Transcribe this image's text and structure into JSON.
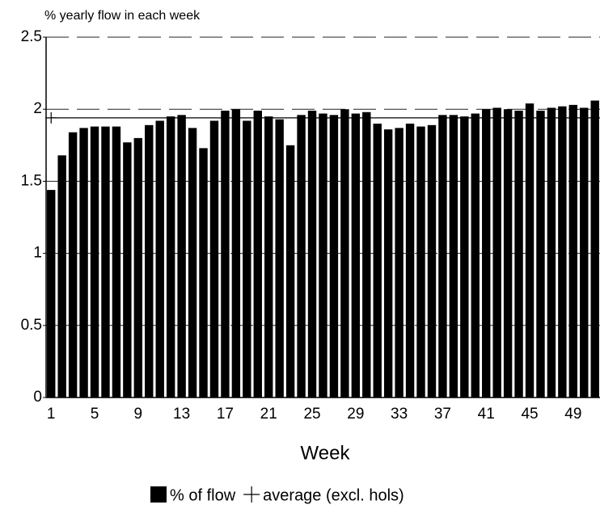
{
  "chart_data": {
    "type": "bar",
    "y_label": "% yearly flow in each week",
    "x_label": "Week",
    "categories": [
      "1",
      null,
      null,
      null,
      "5",
      null,
      null,
      null,
      "9",
      null,
      null,
      null,
      "13",
      null,
      null,
      null,
      "17",
      null,
      null,
      null,
      "21",
      null,
      null,
      null,
      "25",
      null,
      null,
      null,
      "29",
      null,
      null,
      null,
      "33",
      null,
      null,
      null,
      "37",
      null,
      null,
      null,
      "41",
      null,
      null,
      null,
      "45",
      null,
      null,
      null,
      "49",
      null,
      null,
      null
    ],
    "series": [
      {
        "name": "% of flow",
        "type": "bar",
        "color": "#000000",
        "values": [
          1.44,
          1.68,
          1.84,
          1.87,
          1.88,
          1.88,
          1.88,
          1.77,
          1.8,
          1.89,
          1.92,
          1.95,
          1.96,
          1.87,
          1.73,
          1.92,
          1.99,
          2.0,
          1.92,
          1.99,
          1.95,
          1.93,
          1.75,
          1.96,
          1.99,
          1.97,
          1.96,
          2.0,
          1.97,
          1.98,
          1.9,
          1.86,
          1.87,
          1.9,
          1.88,
          1.89,
          1.96,
          1.96,
          1.95,
          1.97,
          2.0,
          2.01,
          2.0,
          1.99,
          2.04,
          1.99,
          2.01,
          2.02,
          2.03,
          2.01,
          2.06,
          2.04
        ]
      },
      {
        "name": "average (excl. hols)",
        "type": "line",
        "color": "#000000",
        "values": [
          1.94,
          1.94,
          1.94,
          1.94,
          1.94,
          1.94,
          1.94,
          1.94,
          1.94,
          1.94,
          1.94,
          1.94,
          1.94,
          1.94,
          1.94,
          1.94,
          1.94,
          1.94,
          1.94,
          1.94,
          1.94,
          1.94,
          1.94,
          1.94,
          1.94,
          1.94,
          1.94,
          1.94,
          1.94,
          1.94,
          1.94,
          1.94,
          1.94,
          1.94,
          1.94,
          1.94,
          1.94,
          1.94,
          1.94,
          1.94,
          1.94,
          1.94,
          1.94,
          1.94,
          1.94,
          1.94,
          1.94,
          1.94,
          1.94,
          1.94,
          1.94,
          1.94
        ]
      }
    ],
    "ylim": [
      0,
      2.5
    ],
    "yticks": [
      0,
      0.5,
      1,
      1.5,
      2,
      2.5
    ],
    "grid": true
  }
}
